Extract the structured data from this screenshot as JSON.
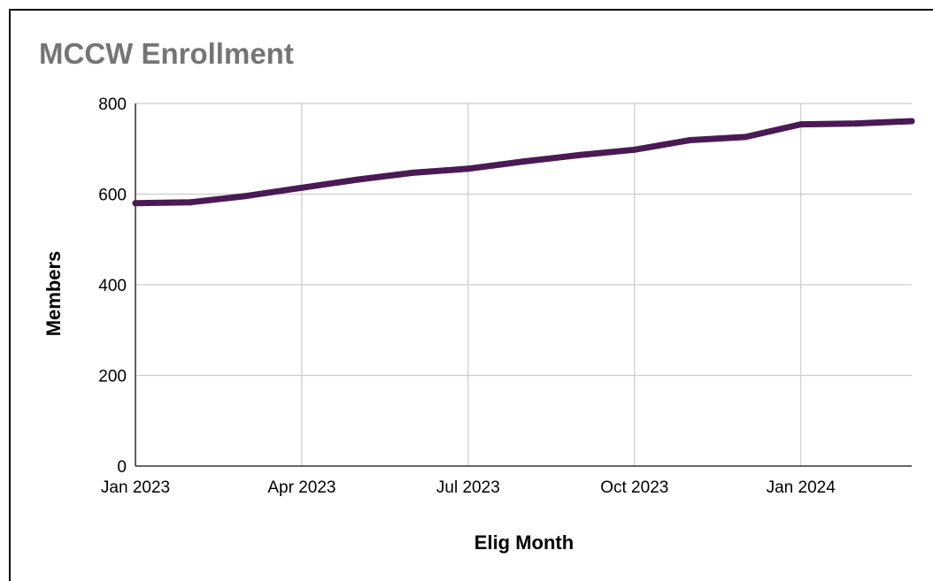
{
  "chart_data": {
    "type": "line",
    "title": "MCCW Enrollment",
    "xlabel": "Elig Month",
    "ylabel": "Members",
    "x": [
      "2023-01",
      "2023-02",
      "2023-03",
      "2023-04",
      "2023-05",
      "2023-06",
      "2023-07",
      "2023-08",
      "2023-09",
      "2023-10",
      "2023-11",
      "2023-12",
      "2024-01",
      "2024-02",
      "2024-03"
    ],
    "x_tick_labels": [
      "Jan 2023",
      "Apr 2023",
      "Jul 2023",
      "Oct 2023",
      "Jan 2024"
    ],
    "y_tick_labels": [
      "0",
      "200",
      "400",
      "600",
      "800"
    ],
    "series": [
      {
        "values": [
          580,
          582,
          596,
          614,
          632,
          647,
          656,
          672,
          686,
          698,
          719,
          726,
          754,
          756,
          761
        ]
      }
    ],
    "ylim": [
      0,
      800
    ],
    "grid": true,
    "legend": "none",
    "colors": {
      "line": "#4a1a54",
      "grid": "#cccccc",
      "axis": "#333333"
    }
  }
}
